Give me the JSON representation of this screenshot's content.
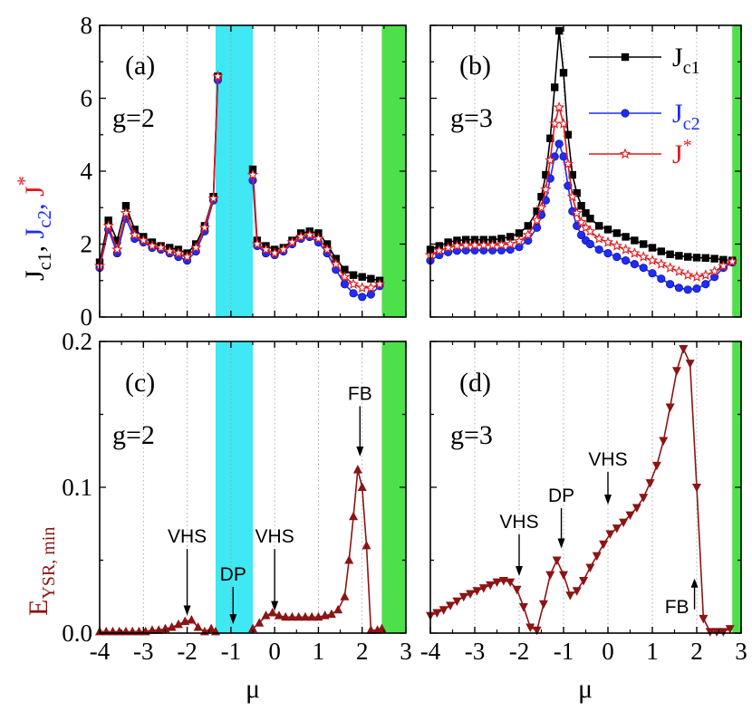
{
  "chart_data": [
    {
      "panel": "a",
      "type": "line",
      "label": "(a)",
      "g_label": "g=2",
      "xlim": [
        -4,
        3
      ],
      "ylim": [
        0,
        8
      ],
      "xticks": [
        -4,
        -3,
        -2,
        -1,
        0,
        1,
        2,
        3
      ],
      "yticks": [
        "0",
        "2",
        "4",
        "6",
        "8"
      ],
      "shaded": [
        {
          "from": -1.35,
          "to": -0.5,
          "color": "#3fe8f2"
        },
        {
          "from": 2.45,
          "to": 3.0,
          "color": "#4ee04a"
        }
      ],
      "series": [
        {
          "name": "Jc1",
          "color": "#000000",
          "marker": "square",
          "x": [
            -4.0,
            -3.8,
            -3.6,
            -3.4,
            -3.2,
            -3.0,
            -2.8,
            -2.6,
            -2.4,
            -2.2,
            -2.0,
            -1.8,
            -1.6,
            -1.4,
            -1.3,
            -0.5,
            -0.4,
            -0.2,
            0.0,
            0.2,
            0.4,
            0.6,
            0.8,
            1.0,
            1.2,
            1.4,
            1.6,
            1.8,
            2.0,
            2.2,
            2.4
          ],
          "y": [
            1.5,
            2.65,
            2.1,
            3.05,
            2.4,
            2.2,
            2.05,
            1.95,
            1.9,
            1.85,
            1.75,
            2.0,
            2.5,
            3.3,
            6.6,
            4.05,
            2.1,
            1.95,
            1.85,
            1.9,
            2.1,
            2.3,
            2.35,
            2.3,
            2.0,
            1.6,
            1.3,
            1.15,
            1.1,
            1.05,
            1.0
          ]
        },
        {
          "name": "Jc2",
          "color": "#1f2bff",
          "marker": "circle",
          "x": [
            -4.0,
            -3.8,
            -3.6,
            -3.4,
            -3.2,
            -3.0,
            -2.8,
            -2.6,
            -2.4,
            -2.2,
            -2.0,
            -1.8,
            -1.6,
            -1.4,
            -1.3,
            -0.5,
            -0.4,
            -0.2,
            0.0,
            0.2,
            0.4,
            0.6,
            0.8,
            1.0,
            1.2,
            1.4,
            1.6,
            1.8,
            2.0,
            2.2,
            2.4
          ],
          "y": [
            1.35,
            2.4,
            1.75,
            2.7,
            2.15,
            2.05,
            1.9,
            1.85,
            1.75,
            1.65,
            1.55,
            1.8,
            2.35,
            3.2,
            6.5,
            3.75,
            1.95,
            1.75,
            1.7,
            1.8,
            2.0,
            2.15,
            2.2,
            2.05,
            1.75,
            1.3,
            0.9,
            0.65,
            0.55,
            0.62,
            0.85
          ]
        },
        {
          "name": "J*",
          "color": "#e0191e",
          "marker": "star",
          "x": [
            -4.0,
            -3.8,
            -3.6,
            -3.4,
            -3.2,
            -3.0,
            -2.8,
            -2.6,
            -2.4,
            -2.2,
            -2.0,
            -1.8,
            -1.6,
            -1.4,
            -1.3,
            -0.5,
            -0.4,
            -0.2,
            0.0,
            0.2,
            0.4,
            0.6,
            0.8,
            1.0,
            1.2,
            1.4,
            1.6,
            1.8,
            2.0,
            2.2,
            2.4
          ],
          "y": [
            1.4,
            2.5,
            1.85,
            2.85,
            2.25,
            2.1,
            1.95,
            1.9,
            1.8,
            1.75,
            1.65,
            1.9,
            2.45,
            3.25,
            6.6,
            3.9,
            2.0,
            1.85,
            1.75,
            1.85,
            2.05,
            2.2,
            2.25,
            2.15,
            1.85,
            1.45,
            1.1,
            0.9,
            0.8,
            0.8,
            0.9
          ]
        }
      ]
    },
    {
      "panel": "b",
      "type": "line",
      "label": "(b)",
      "g_label": "g=3",
      "xlim": [
        -4,
        3
      ],
      "ylim": [
        0,
        8
      ],
      "xticks": [
        -4,
        -3,
        -2,
        -1,
        0,
        1,
        2,
        3
      ],
      "yticks": [],
      "shaded": [
        {
          "from": 2.8,
          "to": 3.0,
          "color": "#4ee04a"
        }
      ],
      "legend": [
        "J",
        "c1",
        "J",
        "c2",
        "J",
        "*"
      ],
      "series": [
        {
          "name": "Jc1",
          "color": "#000000",
          "marker": "square",
          "x": [
            -4.0,
            -3.8,
            -3.6,
            -3.4,
            -3.2,
            -3.0,
            -2.8,
            -2.6,
            -2.4,
            -2.2,
            -2.0,
            -1.8,
            -1.6,
            -1.5,
            -1.4,
            -1.3,
            -1.2,
            -1.1,
            -1.0,
            -0.9,
            -0.8,
            -0.7,
            -0.6,
            -0.5,
            -0.4,
            -0.2,
            0.0,
            0.2,
            0.4,
            0.6,
            0.8,
            1.0,
            1.2,
            1.4,
            1.6,
            1.8,
            2.0,
            2.2,
            2.4,
            2.6,
            2.8
          ],
          "y": [
            1.85,
            1.95,
            2.05,
            2.1,
            2.12,
            2.12,
            2.12,
            2.12,
            2.15,
            2.2,
            2.3,
            2.5,
            2.9,
            3.3,
            3.9,
            4.9,
            6.3,
            7.85,
            6.7,
            5.0,
            3.9,
            3.4,
            3.05,
            2.85,
            2.7,
            2.5,
            2.4,
            2.3,
            2.2,
            2.1,
            2.0,
            1.9,
            1.8,
            1.72,
            1.68,
            1.65,
            1.63,
            1.62,
            1.6,
            1.57,
            1.55
          ]
        },
        {
          "name": "Jc2",
          "color": "#1f2bff",
          "marker": "circle",
          "x": [
            -4.0,
            -3.8,
            -3.6,
            -3.4,
            -3.2,
            -3.0,
            -2.8,
            -2.6,
            -2.4,
            -2.2,
            -2.0,
            -1.8,
            -1.6,
            -1.5,
            -1.4,
            -1.3,
            -1.2,
            -1.1,
            -1.0,
            -0.9,
            -0.8,
            -0.7,
            -0.6,
            -0.5,
            -0.4,
            -0.2,
            0.0,
            0.2,
            0.4,
            0.6,
            0.8,
            1.0,
            1.2,
            1.4,
            1.6,
            1.8,
            2.0,
            2.2,
            2.4,
            2.6,
            2.8
          ],
          "y": [
            1.55,
            1.7,
            1.78,
            1.82,
            1.83,
            1.83,
            1.83,
            1.83,
            1.83,
            1.85,
            1.92,
            2.1,
            2.45,
            2.8,
            3.2,
            3.8,
            4.4,
            4.75,
            4.4,
            3.6,
            2.9,
            2.5,
            2.25,
            2.1,
            2.0,
            1.85,
            1.75,
            1.65,
            1.55,
            1.45,
            1.35,
            1.2,
            1.05,
            0.9,
            0.8,
            0.75,
            0.78,
            0.9,
            1.1,
            1.35,
            1.5
          ]
        },
        {
          "name": "J*",
          "color": "#e0191e",
          "marker": "star",
          "x": [
            -4.0,
            -3.8,
            -3.6,
            -3.4,
            -3.2,
            -3.0,
            -2.8,
            -2.6,
            -2.4,
            -2.2,
            -2.0,
            -1.8,
            -1.6,
            -1.5,
            -1.4,
            -1.3,
            -1.2,
            -1.1,
            -1.0,
            -0.9,
            -0.8,
            -0.7,
            -0.6,
            -0.5,
            -0.4,
            -0.2,
            0.0,
            0.2,
            0.4,
            0.6,
            0.8,
            1.0,
            1.2,
            1.4,
            1.6,
            1.8,
            2.0,
            2.2,
            2.4,
            2.6,
            2.8
          ],
          "y": [
            1.7,
            1.82,
            1.9,
            1.95,
            1.97,
            1.97,
            1.97,
            1.97,
            1.98,
            2.0,
            2.08,
            2.25,
            2.65,
            3.0,
            3.5,
            4.3,
            5.3,
            5.75,
            5.3,
            4.2,
            3.3,
            2.85,
            2.6,
            2.45,
            2.35,
            2.15,
            2.05,
            1.95,
            1.85,
            1.75,
            1.65,
            1.55,
            1.45,
            1.35,
            1.25,
            1.15,
            1.1,
            1.15,
            1.25,
            1.4,
            1.52
          ]
        }
      ]
    },
    {
      "panel": "c",
      "type": "line",
      "label": "(c)",
      "g_label": "g=2",
      "xlim": [
        -4,
        3
      ],
      "ylim": [
        0,
        0.2
      ],
      "xticks": [
        -4,
        -3,
        -2,
        -1,
        0,
        1,
        2,
        3
      ],
      "yticks": [
        "0.0",
        "0.1",
        "0.2"
      ],
      "shaded": [
        {
          "from": -1.35,
          "to": -0.5,
          "color": "#3fe8f2"
        },
        {
          "from": 2.45,
          "to": 3.0,
          "color": "#4ee04a"
        }
      ],
      "annotations": [
        {
          "text": "VHS",
          "x": -2.0,
          "arrow_to": 0.009,
          "text_y": 0.062
        },
        {
          "text": "DP",
          "x": -0.95,
          "arrow_to": 0.003,
          "text_y": 0.036
        },
        {
          "text": "VHS",
          "x": 0.0,
          "arrow_to": 0.012,
          "text_y": 0.062
        },
        {
          "text": "FB",
          "x": 1.95,
          "arrow_to": 0.118,
          "text_y": 0.16
        }
      ],
      "series": [
        {
          "name": "E_YSR,min g=2",
          "color": "#8b1414",
          "marker": "triangle-up",
          "x": [
            -4.0,
            -3.85,
            -3.7,
            -3.55,
            -3.4,
            -3.25,
            -3.1,
            -2.95,
            -2.8,
            -2.65,
            -2.5,
            -2.35,
            -2.2,
            -2.05,
            -1.9,
            -1.75,
            -1.6,
            -1.45,
            -1.35,
            -0.5,
            -0.35,
            -0.2,
            -0.05,
            0.1,
            0.25,
            0.4,
            0.55,
            0.7,
            0.85,
            1.0,
            1.15,
            1.3,
            1.45,
            1.6,
            1.7,
            1.8,
            1.9,
            2.0,
            2.1,
            2.2,
            2.35,
            2.45
          ],
          "y": [
            0.001,
            0.001,
            0.001,
            0.001,
            0.001,
            0.001,
            0.001,
            0.001,
            0.002,
            0.002,
            0.003,
            0.004,
            0.006,
            0.008,
            0.009,
            0.004,
            0.001,
            0.003,
            0.001,
            0.003,
            0.007,
            0.012,
            0.014,
            0.012,
            0.011,
            0.011,
            0.011,
            0.011,
            0.011,
            0.011,
            0.012,
            0.013,
            0.016,
            0.025,
            0.05,
            0.08,
            0.112,
            0.1,
            0.06,
            0.002,
            0.002,
            0.003
          ]
        }
      ]
    },
    {
      "panel": "d",
      "type": "line",
      "label": "(d)",
      "g_label": "g=3",
      "xlim": [
        -4,
        3
      ],
      "ylim": [
        0,
        0.2
      ],
      "xticks": [
        -4,
        -3,
        -2,
        -1,
        0,
        1,
        2,
        3
      ],
      "yticks": [],
      "shaded": [
        {
          "from": 2.8,
          "to": 3.0,
          "color": "#4ee04a"
        }
      ],
      "annotations": [
        {
          "text": "VHS",
          "x": -2.0,
          "arrow_to": 0.036,
          "text_y": 0.072
        },
        {
          "text": "DP",
          "x": -1.05,
          "arrow_to": 0.055,
          "text_y": 0.09
        },
        {
          "text": "VHS",
          "x": 0.0,
          "arrow_to": 0.085,
          "text_y": 0.115
        },
        {
          "text": "FB",
          "x": 1.95,
          "arrow_to": 0.025,
          "text_y": 0.012,
          "arrow_up": true
        }
      ],
      "series": [
        {
          "name": "E_YSR,min g=3",
          "color": "#8b1414",
          "marker": "triangle-down",
          "x": [
            -4.0,
            -3.85,
            -3.7,
            -3.55,
            -3.4,
            -3.25,
            -3.1,
            -2.95,
            -2.8,
            -2.65,
            -2.5,
            -2.35,
            -2.2,
            -2.05,
            -1.9,
            -1.75,
            -1.6,
            -1.45,
            -1.3,
            -1.15,
            -1.0,
            -0.85,
            -0.7,
            -0.55,
            -0.4,
            -0.25,
            -0.1,
            0.05,
            0.2,
            0.35,
            0.5,
            0.65,
            0.8,
            0.95,
            1.1,
            1.25,
            1.4,
            1.55,
            1.7,
            1.85,
            2.0,
            2.15,
            2.3,
            2.45,
            2.6,
            2.75
          ],
          "y": [
            0.012,
            0.014,
            0.016,
            0.019,
            0.022,
            0.025,
            0.027,
            0.029,
            0.031,
            0.033,
            0.035,
            0.036,
            0.035,
            0.03,
            0.018,
            0.004,
            0.002,
            0.02,
            0.04,
            0.05,
            0.04,
            0.026,
            0.029,
            0.036,
            0.045,
            0.053,
            0.061,
            0.068,
            0.072,
            0.076,
            0.081,
            0.086,
            0.093,
            0.103,
            0.115,
            0.132,
            0.155,
            0.18,
            0.195,
            0.185,
            0.1,
            0.01,
            0.001,
            0.001,
            0.001,
            0.003
          ]
        }
      ]
    }
  ],
  "axis_titles": {
    "x": "μ",
    "y_top": [
      "J",
      "c1",
      ",  ",
      "J",
      "c2",
      ",  ",
      "J",
      "*"
    ],
    "y_bottom": [
      "E",
      "YSR, min"
    ]
  }
}
